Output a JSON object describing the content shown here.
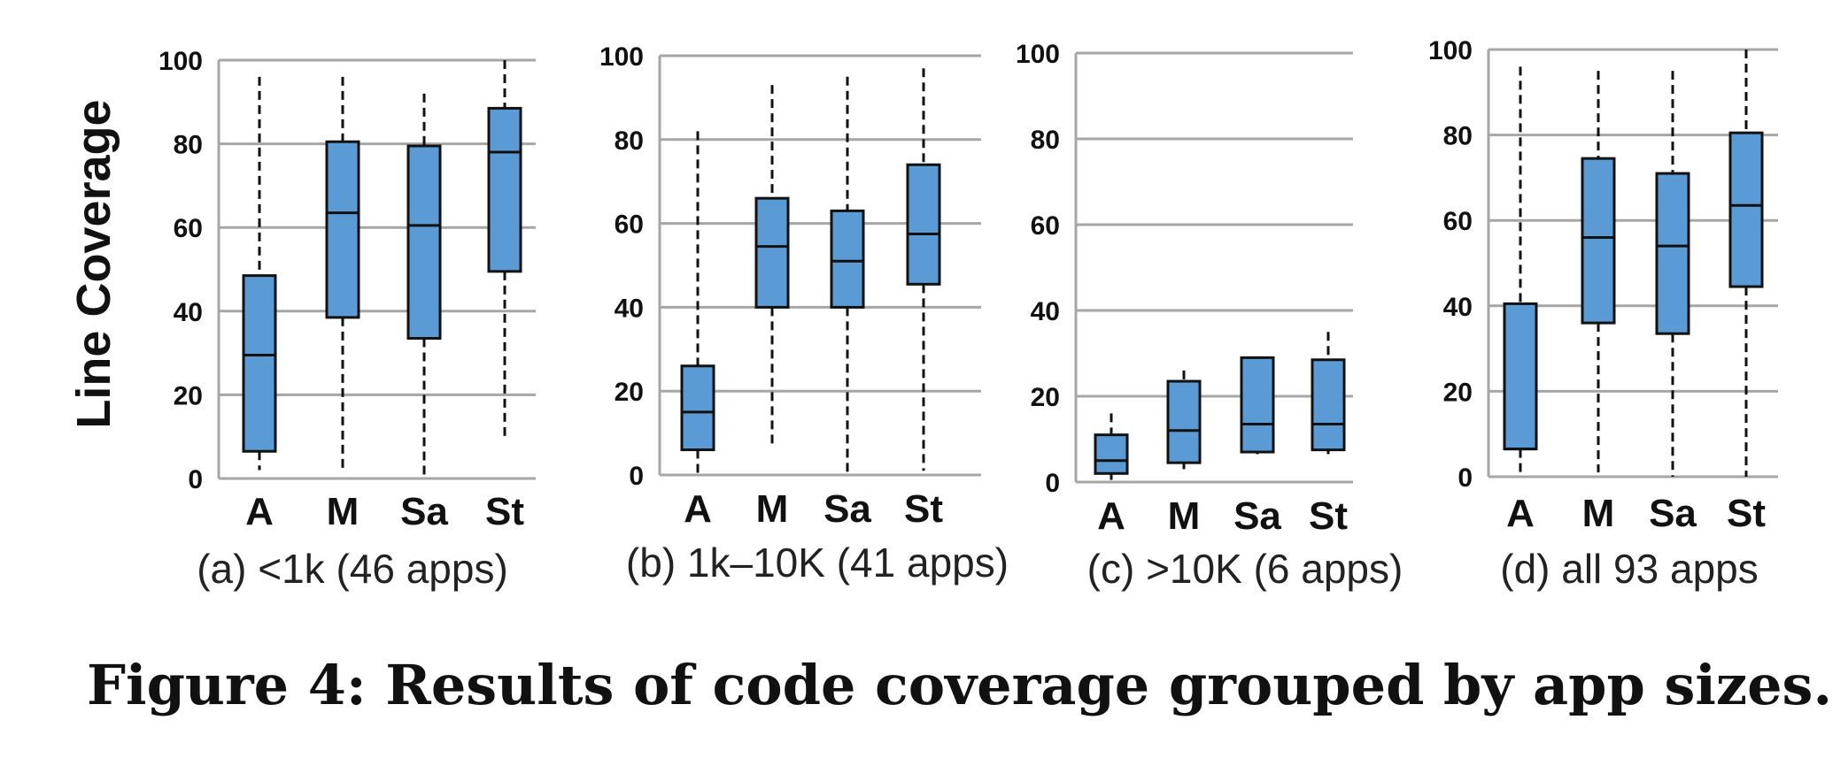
{
  "chart_data": [
    {
      "type": "box",
      "subtitle": "(a) <1k (46 apps)",
      "ylabel": "Line Coverage",
      "ylim": [
        0,
        100
      ],
      "yticks": [
        0,
        20,
        40,
        60,
        80,
        100
      ],
      "grid": true,
      "color": "#5b9bd5",
      "categories": [
        "A",
        "M",
        "Sa",
        "St"
      ],
      "boxes": [
        {
          "min": 2,
          "q1": 6.5,
          "median": 29.5,
          "q3": 48.5,
          "max": 96
        },
        {
          "min": 2,
          "q1": 38.5,
          "median": 63.5,
          "q3": 80.5,
          "max": 96
        },
        {
          "min": 0,
          "q1": 33.5,
          "median": 60.5,
          "q3": 79.5,
          "max": 92
        },
        {
          "min": 10,
          "q1": 49.5,
          "median": 78,
          "q3": 88.5,
          "max": 100
        }
      ]
    },
    {
      "type": "box",
      "subtitle": "(b) 1k–10K (41 apps)",
      "ylim": [
        0,
        100
      ],
      "yticks": [
        0,
        20,
        40,
        60,
        80,
        100
      ],
      "grid": true,
      "color": "#5b9bd5",
      "categories": [
        "A",
        "M",
        "Sa",
        "St"
      ],
      "boxes": [
        {
          "min": 0,
          "q1": 6,
          "median": 15,
          "q3": 26,
          "max": 82
        },
        {
          "min": 7,
          "q1": 40,
          "median": 54.5,
          "q3": 66,
          "max": 93
        },
        {
          "min": 0,
          "q1": 40,
          "median": 51,
          "q3": 63,
          "max": 95
        },
        {
          "min": 1,
          "q1": 45.5,
          "median": 57.5,
          "q3": 74,
          "max": 97
        }
      ]
    },
    {
      "type": "box",
      "subtitle": "(c) >10K (6 apps)",
      "ylim": [
        0,
        100
      ],
      "yticks": [
        0,
        20,
        40,
        60,
        80,
        100
      ],
      "grid": true,
      "color": "#5b9bd5",
      "categories": [
        "A",
        "M",
        "Sa",
        "St"
      ],
      "boxes": [
        {
          "min": 0.5,
          "q1": 2,
          "median": 5,
          "q3": 11,
          "max": 16
        },
        {
          "min": 3,
          "q1": 4.5,
          "median": 12,
          "q3": 23.5,
          "max": 26
        },
        {
          "min": 6.5,
          "q1": 7,
          "median": 13.5,
          "q3": 29,
          "max": 29
        },
        {
          "min": 6.5,
          "q1": 7.5,
          "median": 13.5,
          "q3": 28.5,
          "max": 35
        }
      ]
    },
    {
      "type": "box",
      "subtitle": "(d) all 93 apps",
      "ylim": [
        0,
        100
      ],
      "yticks": [
        0,
        20,
        40,
        60,
        80,
        100
      ],
      "grid": true,
      "color": "#5b9bd5",
      "categories": [
        "A",
        "M",
        "Sa",
        "St"
      ],
      "boxes": [
        {
          "min": 0,
          "q1": 6.5,
          "median": 6.5,
          "q3": 40.5,
          "max": 96
        },
        {
          "min": 1,
          "q1": 36,
          "median": 56,
          "q3": 74.5,
          "max": 95
        },
        {
          "min": 0,
          "q1": 33.5,
          "median": 54,
          "q3": 71,
          "max": 95
        },
        {
          "min": 0,
          "q1": 44.5,
          "median": 63.5,
          "q3": 80.5,
          "max": 100
        }
      ]
    }
  ],
  "caption": "Figure 4: Results of code coverage grouped by app sizes."
}
